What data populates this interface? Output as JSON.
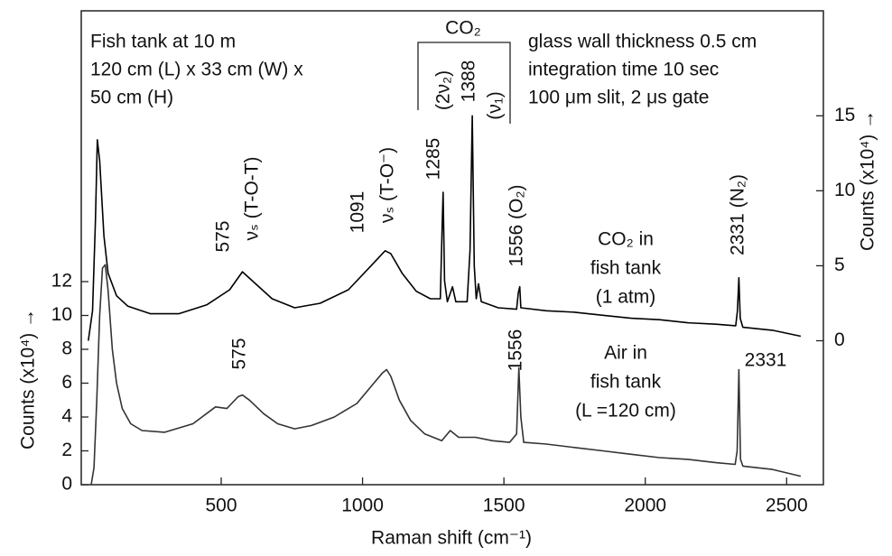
{
  "chart_data": {
    "type": "line",
    "x_label": "Raman shift (cm⁻¹)",
    "y_label": "Counts (x10⁴) →",
    "y2_label": "Counts (x10⁴) →",
    "xlim": [
      5,
      2630
    ],
    "xticks": [
      500,
      1000,
      1500,
      2000,
      2500
    ],
    "ylim": [
      0,
      28
    ],
    "yticks": [
      0,
      2,
      4,
      6,
      8,
      10,
      12
    ],
    "y2lim": [
      -9.6,
      22
    ],
    "y2ticks": [
      0,
      5,
      10,
      15
    ],
    "series": [
      {
        "label": [
          "CO₂ in",
          "fish tank",
          "(1 atm)"
        ],
        "color": "#000000",
        "axis": "y2",
        "x": [
          30,
          45,
          55,
          62,
          70,
          85,
          100,
          130,
          170,
          250,
          350,
          450,
          530,
          575,
          610,
          680,
          760,
          850,
          950,
          1030,
          1080,
          1100,
          1140,
          1190,
          1240,
          1275,
          1282,
          1285,
          1290,
          1300,
          1318,
          1330,
          1370,
          1380,
          1388,
          1395,
          1402,
          1410,
          1420,
          1480,
          1545,
          1551,
          1556,
          1560,
          1650,
          1750,
          1850,
          1950,
          2050,
          2150,
          2250,
          2320,
          2326,
          2331,
          2336,
          2345,
          2450,
          2550
        ],
        "values": [
          0,
          2,
          8,
          13.4,
          12,
          7,
          4.5,
          3,
          2.3,
          1.8,
          1.8,
          2.4,
          3.4,
          4.6,
          4,
          2.8,
          2.2,
          2.5,
          3.4,
          5,
          6,
          5.8,
          4.5,
          3.3,
          2.8,
          2.8,
          8,
          9.9,
          4,
          2.6,
          3.6,
          2.6,
          2.6,
          6,
          15,
          5,
          2.8,
          3.8,
          2.6,
          2.2,
          2.1,
          3.2,
          3.6,
          2.2,
          2,
          1.9,
          1.7,
          1.5,
          1.4,
          1.2,
          1.1,
          1,
          2,
          4.2,
          1.5,
          0.9,
          0.7,
          0.3
        ]
      },
      {
        "label": [
          "Air in",
          "fish tank",
          "(L =120 cm)"
        ],
        "color": "#333333",
        "axis": "y",
        "x": [
          40,
          50,
          60,
          70,
          80,
          90,
          100,
          115,
          130,
          150,
          180,
          220,
          300,
          400,
          480,
          520,
          560,
          575,
          600,
          650,
          700,
          760,
          820,
          900,
          980,
          1040,
          1070,
          1085,
          1100,
          1130,
          1170,
          1220,
          1280,
          1310,
          1340,
          1400,
          1460,
          1520,
          1545,
          1553,
          1560,
          1570,
          1650,
          1750,
          1850,
          1950,
          2050,
          2150,
          2250,
          2318,
          2325,
          2331,
          2337,
          2345,
          2450,
          2550
        ],
        "values": [
          0,
          1,
          5,
          10,
          12.8,
          13,
          11.5,
          8,
          6,
          4.5,
          3.6,
          3.2,
          3.1,
          3.6,
          4.6,
          4.5,
          5.2,
          5.3,
          5,
          4.2,
          3.6,
          3.3,
          3.5,
          4,
          4.8,
          6,
          6.6,
          6.8,
          6.4,
          5,
          3.8,
          3,
          2.6,
          3.2,
          2.8,
          2.8,
          2.6,
          2.5,
          3,
          6.9,
          4,
          2.5,
          2.4,
          2.2,
          2,
          1.8,
          1.6,
          1.5,
          1.3,
          1.2,
          2,
          6.8,
          1.5,
          1.1,
          0.9,
          0.5
        ]
      }
    ],
    "annotations": [
      "Fish tank at 10 m",
      "120 cm (L) x 33 cm (W) x",
      "50 cm (H)",
      "glass wall thickness 0.5 cm",
      "integration time 10 sec",
      "100 μm slit, 2 μs gate",
      "CO₂",
      "(2ν₂)",
      "(ν₁)",
      "1285",
      "1388",
      "575",
      "νₛ (T-O-T)",
      "1091",
      "νₛ (T-O⁻)",
      "1556 (O₂)",
      "2331 (N₂)",
      "575",
      "1556",
      "2331"
    ]
  }
}
